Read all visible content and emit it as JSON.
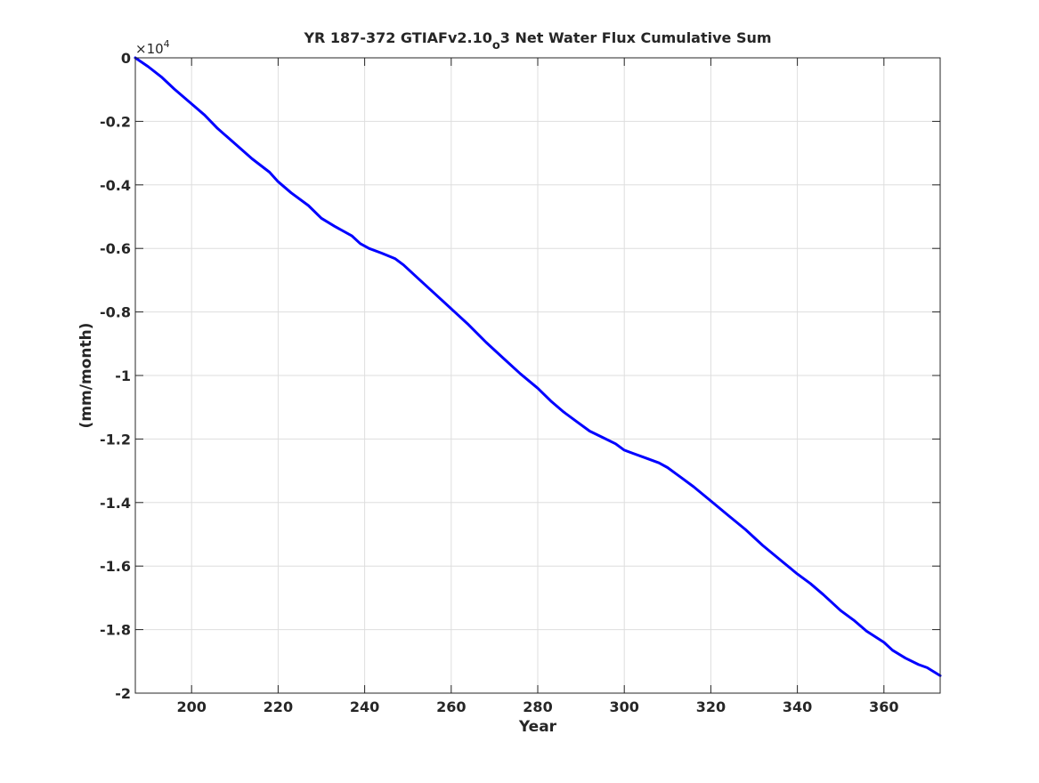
{
  "chart_data": {
    "type": "line",
    "title_main": "YR 187-372 GTIAFv2.10",
    "title_sub": "o",
    "title_tail": "3 Net Water Flux Cumulative Sum",
    "xlabel": "Year",
    "ylabel": "(mm/month)",
    "exponent_base": "×10",
    "exponent_power": "4",
    "xlim": [
      187,
      373
    ],
    "ylim": [
      -2,
      0
    ],
    "grid": true,
    "x_ticks": [
      200,
      220,
      240,
      260,
      280,
      300,
      320,
      340,
      360
    ],
    "y_ticks": [
      0,
      -0.2,
      -0.4,
      -0.6,
      -0.8,
      -1,
      -1.2,
      -1.4,
      -1.6,
      -1.8,
      -2
    ],
    "x_tick_labels": [
      "200",
      "220",
      "240",
      "260",
      "280",
      "300",
      "320",
      "340",
      "360"
    ],
    "y_tick_labels": [
      "0",
      "-0.2",
      "-0.4",
      "-0.6",
      "-0.8",
      "-1",
      "-1.2",
      "-1.4",
      "-1.6",
      "-1.8",
      "-2"
    ],
    "series": [
      {
        "color": "#0000ff",
        "x": [
          187,
          190,
          193,
          196,
          200,
          203,
          206,
          210,
          214,
          218,
          220,
          223,
          227,
          230,
          233,
          237,
          239,
          241,
          244,
          247,
          249,
          252,
          256,
          260,
          264,
          268,
          272,
          276,
          280,
          283,
          286,
          289,
          292,
          295,
          298,
          300,
          302,
          305,
          308,
          310,
          313,
          316,
          320,
          324,
          328,
          332,
          336,
          340,
          343,
          346,
          350,
          353,
          356,
          360,
          362,
          365,
          368,
          370,
          373
        ],
        "y": [
          0,
          -0.028,
          -0.06,
          -0.098,
          -0.145,
          -0.18,
          -0.222,
          -0.27,
          -0.318,
          -0.36,
          -0.39,
          -0.425,
          -0.465,
          -0.505,
          -0.53,
          -0.56,
          -0.585,
          -0.6,
          -0.615,
          -0.632,
          -0.652,
          -0.69,
          -0.74,
          -0.79,
          -0.84,
          -0.895,
          -0.945,
          -0.995,
          -1.04,
          -1.08,
          -1.115,
          -1.145,
          -1.175,
          -1.195,
          -1.215,
          -1.235,
          -1.245,
          -1.26,
          -1.275,
          -1.29,
          -1.32,
          -1.35,
          -1.395,
          -1.44,
          -1.485,
          -1.535,
          -1.58,
          -1.625,
          -1.655,
          -1.69,
          -1.74,
          -1.77,
          -1.805,
          -1.84,
          -1.865,
          -1.89,
          -1.91,
          -1.92,
          -1.945
        ]
      }
    ]
  }
}
